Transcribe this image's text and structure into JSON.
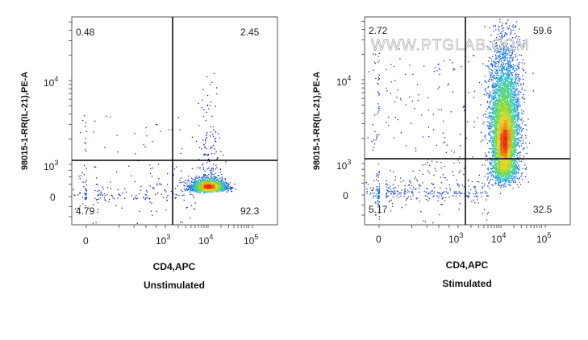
{
  "watermark": "WWW.PTGLAB.COM",
  "chart_data": [
    {
      "type": "scatter",
      "subtitle": "Unstimulated",
      "xlabel": "CD4,APC",
      "ylabel": "98015-1-RR(IL-21),PE-A",
      "x_ticks": [
        {
          "base": "0",
          "exp": ""
        },
        {
          "base": "10",
          "exp": "3"
        },
        {
          "base": "10",
          "exp": "4"
        },
        {
          "base": "10",
          "exp": "5"
        }
      ],
      "y_ticks": [
        {
          "base": "0",
          "exp": ""
        },
        {
          "base": "10",
          "exp": "3"
        },
        {
          "base": "10",
          "exp": "4"
        }
      ],
      "quadrants": {
        "upper_left": "0.48",
        "upper_right": "2.45",
        "lower_left": "4.79",
        "lower_right": "92.3"
      },
      "gate": {
        "x": 1000,
        "y": 1000
      },
      "scale": "biexponential",
      "populations": [
        {
          "name": "main",
          "x_center": 10000,
          "y_center": 200,
          "spread_x": 0.55,
          "spread_y": 0.5,
          "count": 2400
        },
        {
          "name": "tail_up",
          "x_center": 11000,
          "y_center": 1400,
          "spread_x": 0.4,
          "spread_y": 1.2,
          "count": 140
        },
        {
          "name": "diffuse",
          "x_center": 150,
          "y_center": 350,
          "spread_x": 2.0,
          "spread_y": 1.2,
          "count": 280
        }
      ]
    },
    {
      "type": "scatter",
      "subtitle": "Stimulated",
      "xlabel": "CD4,APC",
      "ylabel": "98015-1-RR(IL-21),PE-A",
      "x_ticks": [
        {
          "base": "0",
          "exp": ""
        },
        {
          "base": "10",
          "exp": "3"
        },
        {
          "base": "10",
          "exp": "4"
        },
        {
          "base": "10",
          "exp": "5"
        }
      ],
      "y_ticks": [
        {
          "base": "0",
          "exp": ""
        },
        {
          "base": "10",
          "exp": "3"
        },
        {
          "base": "10",
          "exp": "4"
        }
      ],
      "quadrants": {
        "upper_left": "2.72",
        "upper_right": "59.6",
        "lower_left": "5.17",
        "lower_right": "32.5"
      },
      "gate": {
        "x": 1000,
        "y": 1000
      },
      "scale": "biexponential",
      "populations": [
        {
          "name": "main_column",
          "x_center": 12000,
          "y_center": 3200,
          "spread_x": 0.5,
          "spread_y": 1.3,
          "count": 4200
        },
        {
          "name": "core",
          "x_center": 11500,
          "y_center": 1800,
          "spread_x": 0.35,
          "spread_y": 0.6,
          "count": 1800
        },
        {
          "name": "diffuse",
          "x_center": 300,
          "y_center": 900,
          "spread_x": 2.0,
          "spread_y": 1.6,
          "count": 700
        }
      ]
    }
  ]
}
